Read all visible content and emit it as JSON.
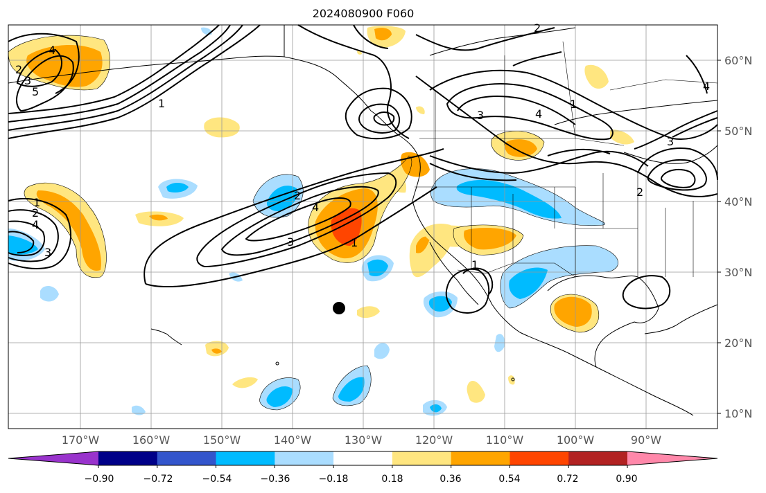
{
  "title": "2024080900 F060",
  "lat_labels": [
    "60°N",
    "50°N",
    "40°N",
    "30°N",
    "20°N",
    "10°N"
  ],
  "lon_labels": [
    "170°W",
    "160°W",
    "150°W",
    "140°W",
    "130°W",
    "120°W",
    "110°W",
    "100°W",
    "90°W"
  ],
  "colorbar": {
    "ticks": [
      "−0.90",
      "−0.72",
      "−0.54",
      "−0.36",
      "−0.18",
      "0.18",
      "0.36",
      "0.54",
      "0.72",
      "0.90"
    ],
    "colors": [
      "#9933cc",
      "#000088",
      "#3355cc",
      "#00bbff",
      "#aaddff",
      "#ffffff",
      "#ffe680",
      "#ffa500",
      "#ff4500",
      "#b22222",
      "#ff88aa"
    ]
  },
  "fill_colors": {
    "neg_light": "#aaddff",
    "neg_mid": "#00bbff",
    "pos_light": "#ffe680",
    "pos_mid": "#ffa500",
    "pos_strong": "#ff4500"
  },
  "contour_labels": [
    "1",
    "2",
    "3",
    "4",
    "5",
    "1",
    "2",
    "3",
    "4",
    "2",
    "3",
    "4",
    "1",
    "2",
    "3",
    "4",
    "1",
    "2",
    "4",
    "3",
    "1"
  ]
}
